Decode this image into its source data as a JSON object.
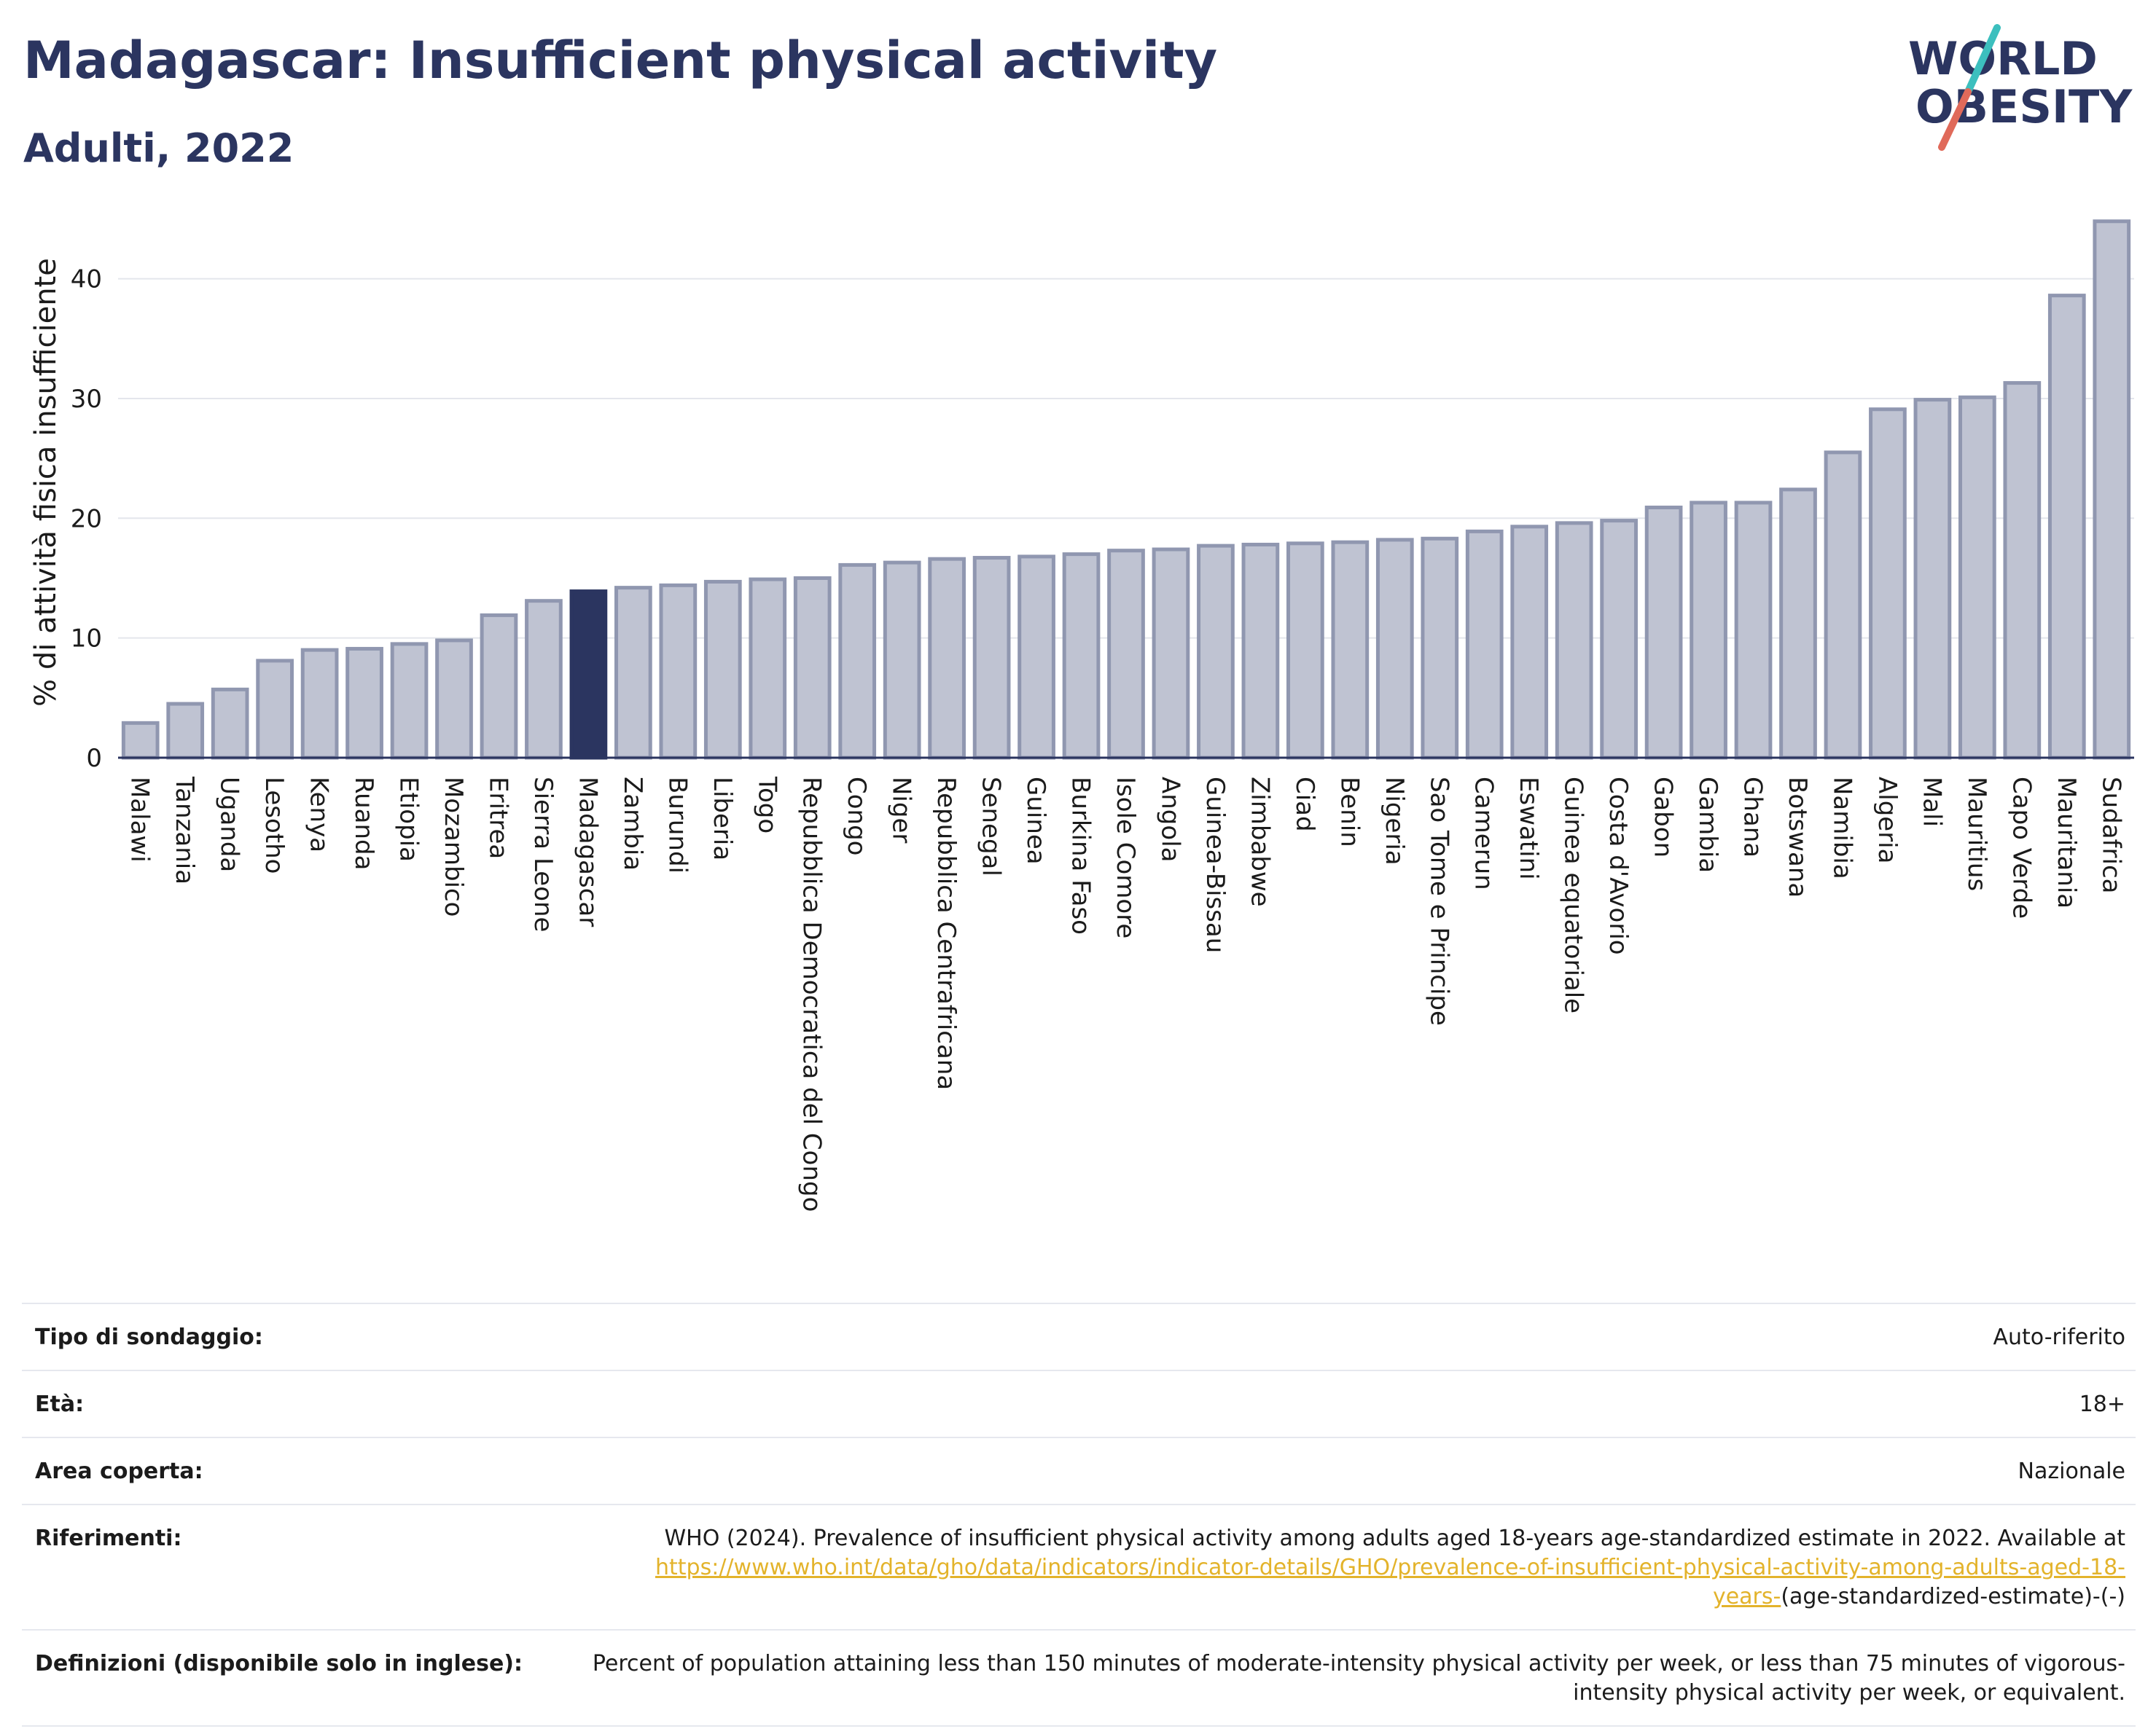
{
  "header": {
    "title": "Madagascar: Insufficient physical activity",
    "subtitle": "Adulti, 2022",
    "logo_line1": "WORLD",
    "logo_line2": "OBESITY"
  },
  "colors": {
    "bar": "#bfc3d2",
    "bar_stroke": "#9097b0",
    "highlight": "#2b3560",
    "text": "#2b3560",
    "link": "#e3b32b",
    "logo_teal": "#3cbfbe",
    "logo_coral": "#e06a5a"
  },
  "chart_data": {
    "type": "bar",
    "ylabel": "% di attività fisica insufficiente",
    "ylim": [
      0,
      46
    ],
    "yticks": [
      0,
      10,
      20,
      30,
      40
    ],
    "grid": true,
    "highlight": "Madagascar",
    "categories": [
      "Malawi",
      "Tanzania",
      "Uganda",
      "Lesotho",
      "Kenya",
      "Ruanda",
      "Etiopia",
      "Mozambico",
      "Eritrea",
      "Sierra Leone",
      "Madagascar",
      "Zambia",
      "Burundi",
      "Liberia",
      "Togo",
      "Repubblica Democratica del Congo",
      "Congo",
      "Niger",
      "Repubblica Centrafricana",
      "Senegal",
      "Guinea",
      "Burkina Faso",
      "Isole Comore",
      "Angola",
      "Guinea-Bissau",
      "Zimbabwe",
      "Ciad",
      "Benin",
      "Nigeria",
      "Sao Tome e Principe",
      "Camerun",
      "Eswatini",
      "Guinea equatoriale",
      "Costa d'Avorio",
      "Gabon",
      "Gambia",
      "Ghana",
      "Botswana",
      "Namibia",
      "Algeria",
      "Mali",
      "Mauritius",
      "Capo Verde",
      "Mauritania",
      "Sudafrica"
    ],
    "values": [
      2.9,
      4.5,
      5.7,
      8.1,
      9.0,
      9.1,
      9.5,
      9.8,
      11.9,
      13.1,
      13.9,
      14.2,
      14.4,
      14.7,
      14.9,
      15.0,
      16.1,
      16.3,
      16.6,
      16.7,
      16.8,
      17.0,
      17.3,
      17.4,
      17.7,
      17.8,
      17.9,
      18.0,
      18.2,
      18.3,
      18.9,
      19.3,
      19.6,
      19.8,
      20.9,
      21.3,
      21.3,
      22.4,
      25.5,
      29.1,
      29.9,
      30.1,
      31.3,
      38.6,
      44.8
    ]
  },
  "info": {
    "survey_label": "Tipo di sondaggio:",
    "survey_value": "Auto-riferito",
    "age_label": "Età:",
    "age_value": "18+",
    "area_label": "Area coperta:",
    "area_value": "Nazionale",
    "ref_label": "Riferimenti:",
    "ref_text": "WHO (2024). Prevalence of insufficient physical activity among adults aged 18-years age-standardized estimate in 2022. Available at ",
    "ref_link": "https://www.who.int/data/gho/data/indicators/indicator-details/GHO/prevalence-of-insufficient-physical-activity-among-adults-aged-18-years-",
    "ref_tail": "(age-standardized-estimate)-(-)",
    "def_label": "Definizioni (disponibile solo in inglese):",
    "def_text": "Percent of population attaining less than 150 minutes of moderate-intensity physical activity per week, or less than 75 minutes of vigorous-intensity physical activity per week, or equivalent."
  }
}
